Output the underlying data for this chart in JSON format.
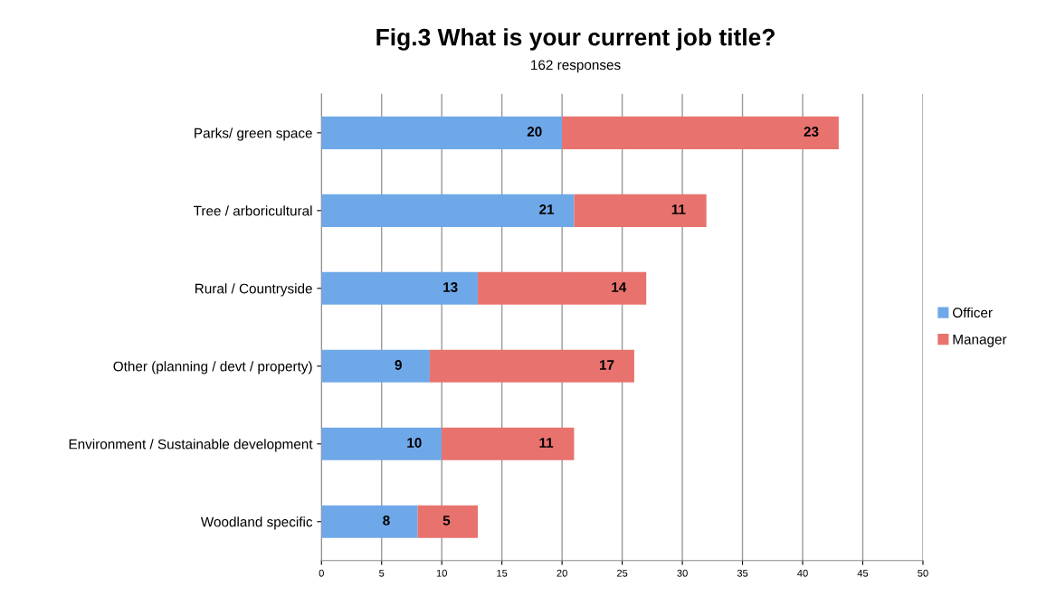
{
  "chart_data": {
    "type": "bar",
    "orientation": "horizontal",
    "stacked": true,
    "title": "Fig.3 What is your current job title?",
    "subtitle": "162 responses",
    "categories": [
      "Parks/ green space",
      "Tree / arboricultural",
      "Rural / Countryside",
      "Other (planning / devt / property)",
      "Environment / Sustainable development",
      "Woodland specific"
    ],
    "series": [
      {
        "name": "Officer",
        "color": "#6fa8e8",
        "values": [
          20,
          21,
          13,
          9,
          10,
          8
        ]
      },
      {
        "name": "Manager",
        "color": "#e8726d",
        "values": [
          23,
          11,
          14,
          17,
          11,
          5
        ]
      }
    ],
    "xlim": [
      0,
      50
    ],
    "xticks": [
      0,
      5,
      10,
      15,
      20,
      25,
      30,
      35,
      40,
      45,
      50
    ],
    "grid": "x",
    "legend": "right",
    "data_labels": true
  }
}
